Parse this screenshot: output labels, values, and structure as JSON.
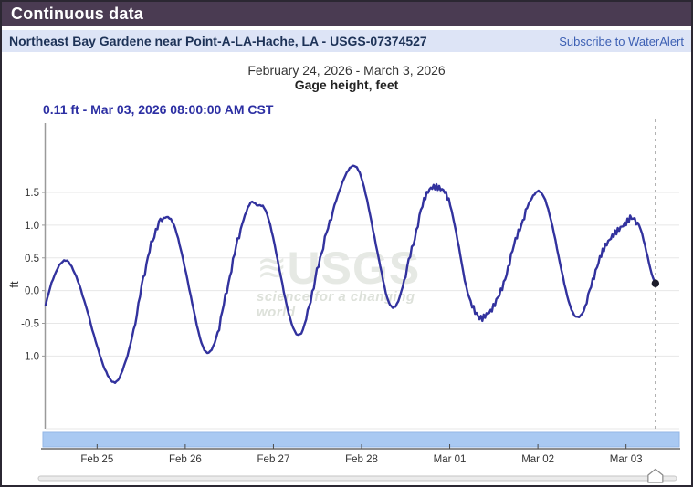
{
  "header": {
    "title": "Continuous data"
  },
  "station_bar": {
    "name": "Northeast Bay Gardene near Point-A-LA-Hache, LA - USGS-07374527",
    "subscribe_link": "Subscribe to WaterAlert"
  },
  "colors": {
    "header_bg": "#4a3b52",
    "station_bg": "#dde4f6",
    "link": "#3c5fb3",
    "readout": "#2c2fa3",
    "line": "#32329e",
    "brush_fill": "#a9c9f2",
    "brush_border": "#93b6e6",
    "grid": "#e7e7e7",
    "y_axis": "#9a9a9a",
    "x_axis": "#4a4a4a",
    "tick_text": "#333333",
    "cursor_line": "#999999",
    "dot": "#1c1c2a",
    "watermark": "#e6e9e4",
    "watermark_tagline": "#dde1da",
    "slider_track": "#ebebeb",
    "slider_border": "#c6c6c6"
  },
  "chart_data": {
    "type": "line",
    "title": "February 24, 2026 - March 3, 2026",
    "subtitle": "Gage height, feet",
    "ylabel": "ft",
    "cursor_readout": "0.11 ft - Mar 03, 2026 08:00:00 AM CST",
    "cursor": {
      "time_hours_since_feb24": 176,
      "value_ft": 0.11
    },
    "time_unit": "hours since Feb 24, 2026 00:00 CST",
    "xlim": [
      10,
      182.5
    ],
    "ylim": [
      -2.11,
      2.56
    ],
    "grid": true,
    "yticks": [
      {
        "v": 1.5,
        "label": "1.5"
      },
      {
        "v": 1.0,
        "label": "1.0"
      },
      {
        "v": 0.5,
        "label": "0.5"
      },
      {
        "v": 0.0,
        "label": "0.0"
      },
      {
        "v": -0.5,
        "label": "-0.5"
      },
      {
        "v": -1.0,
        "label": "-1.0"
      }
    ],
    "xticks": [
      {
        "t": 24,
        "label": "Feb 25"
      },
      {
        "t": 48,
        "label": "Feb 26"
      },
      {
        "t": 72,
        "label": "Feb 27"
      },
      {
        "t": 96,
        "label": "Feb 28"
      },
      {
        "t": 120,
        "label": "Mar 01"
      },
      {
        "t": 144,
        "label": "Mar 02"
      },
      {
        "t": 168,
        "label": "Mar 03"
      }
    ],
    "series": [
      {
        "name": "Gage height, feet",
        "color": "#32329e",
        "keypoints": [
          [
            10,
            -0.22
          ],
          [
            12,
            0.18
          ],
          [
            15,
            0.46
          ],
          [
            17.5,
            0.32
          ],
          [
            20.5,
            -0.15
          ],
          [
            24,
            -0.85
          ],
          [
            26.5,
            -1.25
          ],
          [
            28.5,
            -1.4
          ],
          [
            30.5,
            -1.28
          ],
          [
            33.5,
            -0.72
          ],
          [
            37,
            0.3
          ],
          [
            40,
            0.92
          ],
          [
            42.5,
            1.12
          ],
          [
            44.5,
            1.05
          ],
          [
            46.5,
            0.7
          ],
          [
            49.5,
            -0.08
          ],
          [
            52,
            -0.72
          ],
          [
            54,
            -0.95
          ],
          [
            56,
            -0.8
          ],
          [
            58.5,
            -0.22
          ],
          [
            61,
            0.45
          ],
          [
            63.5,
            1.02
          ],
          [
            65.8,
            1.34
          ],
          [
            67.5,
            1.31
          ],
          [
            69.5,
            1.26
          ],
          [
            71.5,
            0.92
          ],
          [
            74,
            0.22
          ],
          [
            76.5,
            -0.42
          ],
          [
            78.7,
            -0.68
          ],
          [
            80.5,
            -0.52
          ],
          [
            83,
            0.08
          ],
          [
            86,
            0.78
          ],
          [
            89.5,
            1.45
          ],
          [
            92,
            1.8
          ],
          [
            93.9,
            1.91
          ],
          [
            95.5,
            1.8
          ],
          [
            97.5,
            1.38
          ],
          [
            99.5,
            0.82
          ],
          [
            101.5,
            0.26
          ],
          [
            103,
            -0.12
          ],
          [
            104.5,
            -0.26
          ],
          [
            106,
            -0.16
          ],
          [
            108,
            0.25
          ],
          [
            110.5,
            0.82
          ],
          [
            113,
            1.38
          ],
          [
            114.5,
            1.56
          ],
          [
            116,
            1.61
          ],
          [
            117.5,
            1.58
          ],
          [
            119,
            1.5
          ],
          [
            120.5,
            1.22
          ],
          [
            122.5,
            0.66
          ],
          [
            124.5,
            0.06
          ],
          [
            126.5,
            -0.3
          ],
          [
            128.5,
            -0.4
          ],
          [
            130,
            -0.34
          ],
          [
            131.5,
            -0.27
          ],
          [
            133.5,
            -0.08
          ],
          [
            135.5,
            0.28
          ],
          [
            137.5,
            0.68
          ],
          [
            139.5,
            1.02
          ],
          [
            141.5,
            1.32
          ],
          [
            143.5,
            1.5
          ],
          [
            144.5,
            1.51
          ],
          [
            146,
            1.38
          ],
          [
            148,
            0.98
          ],
          [
            150,
            0.42
          ],
          [
            152,
            -0.08
          ],
          [
            153.5,
            -0.33
          ],
          [
            154.8,
            -0.41
          ],
          [
            156.5,
            -0.3
          ],
          [
            158.5,
            0.06
          ],
          [
            160.5,
            0.46
          ],
          [
            162,
            0.66
          ],
          [
            163.5,
            0.78
          ],
          [
            165,
            0.87
          ],
          [
            166.5,
            0.94
          ],
          [
            168,
            1.01
          ],
          [
            169.5,
            1.1
          ],
          [
            170.8,
            1.07
          ],
          [
            172,
            0.93
          ],
          [
            173.5,
            0.6
          ],
          [
            175,
            0.25
          ],
          [
            176,
            0.11
          ]
        ]
      }
    ],
    "noise_windows": [
      [
        34,
        42
      ],
      [
        57,
        63
      ],
      [
        81,
        88
      ],
      [
        108,
        120
      ],
      [
        125,
        141
      ],
      [
        157,
        171
      ]
    ],
    "watermark": {
      "symbol": "≋",
      "text": "USGS",
      "tagline": "science for a changing world"
    }
  }
}
